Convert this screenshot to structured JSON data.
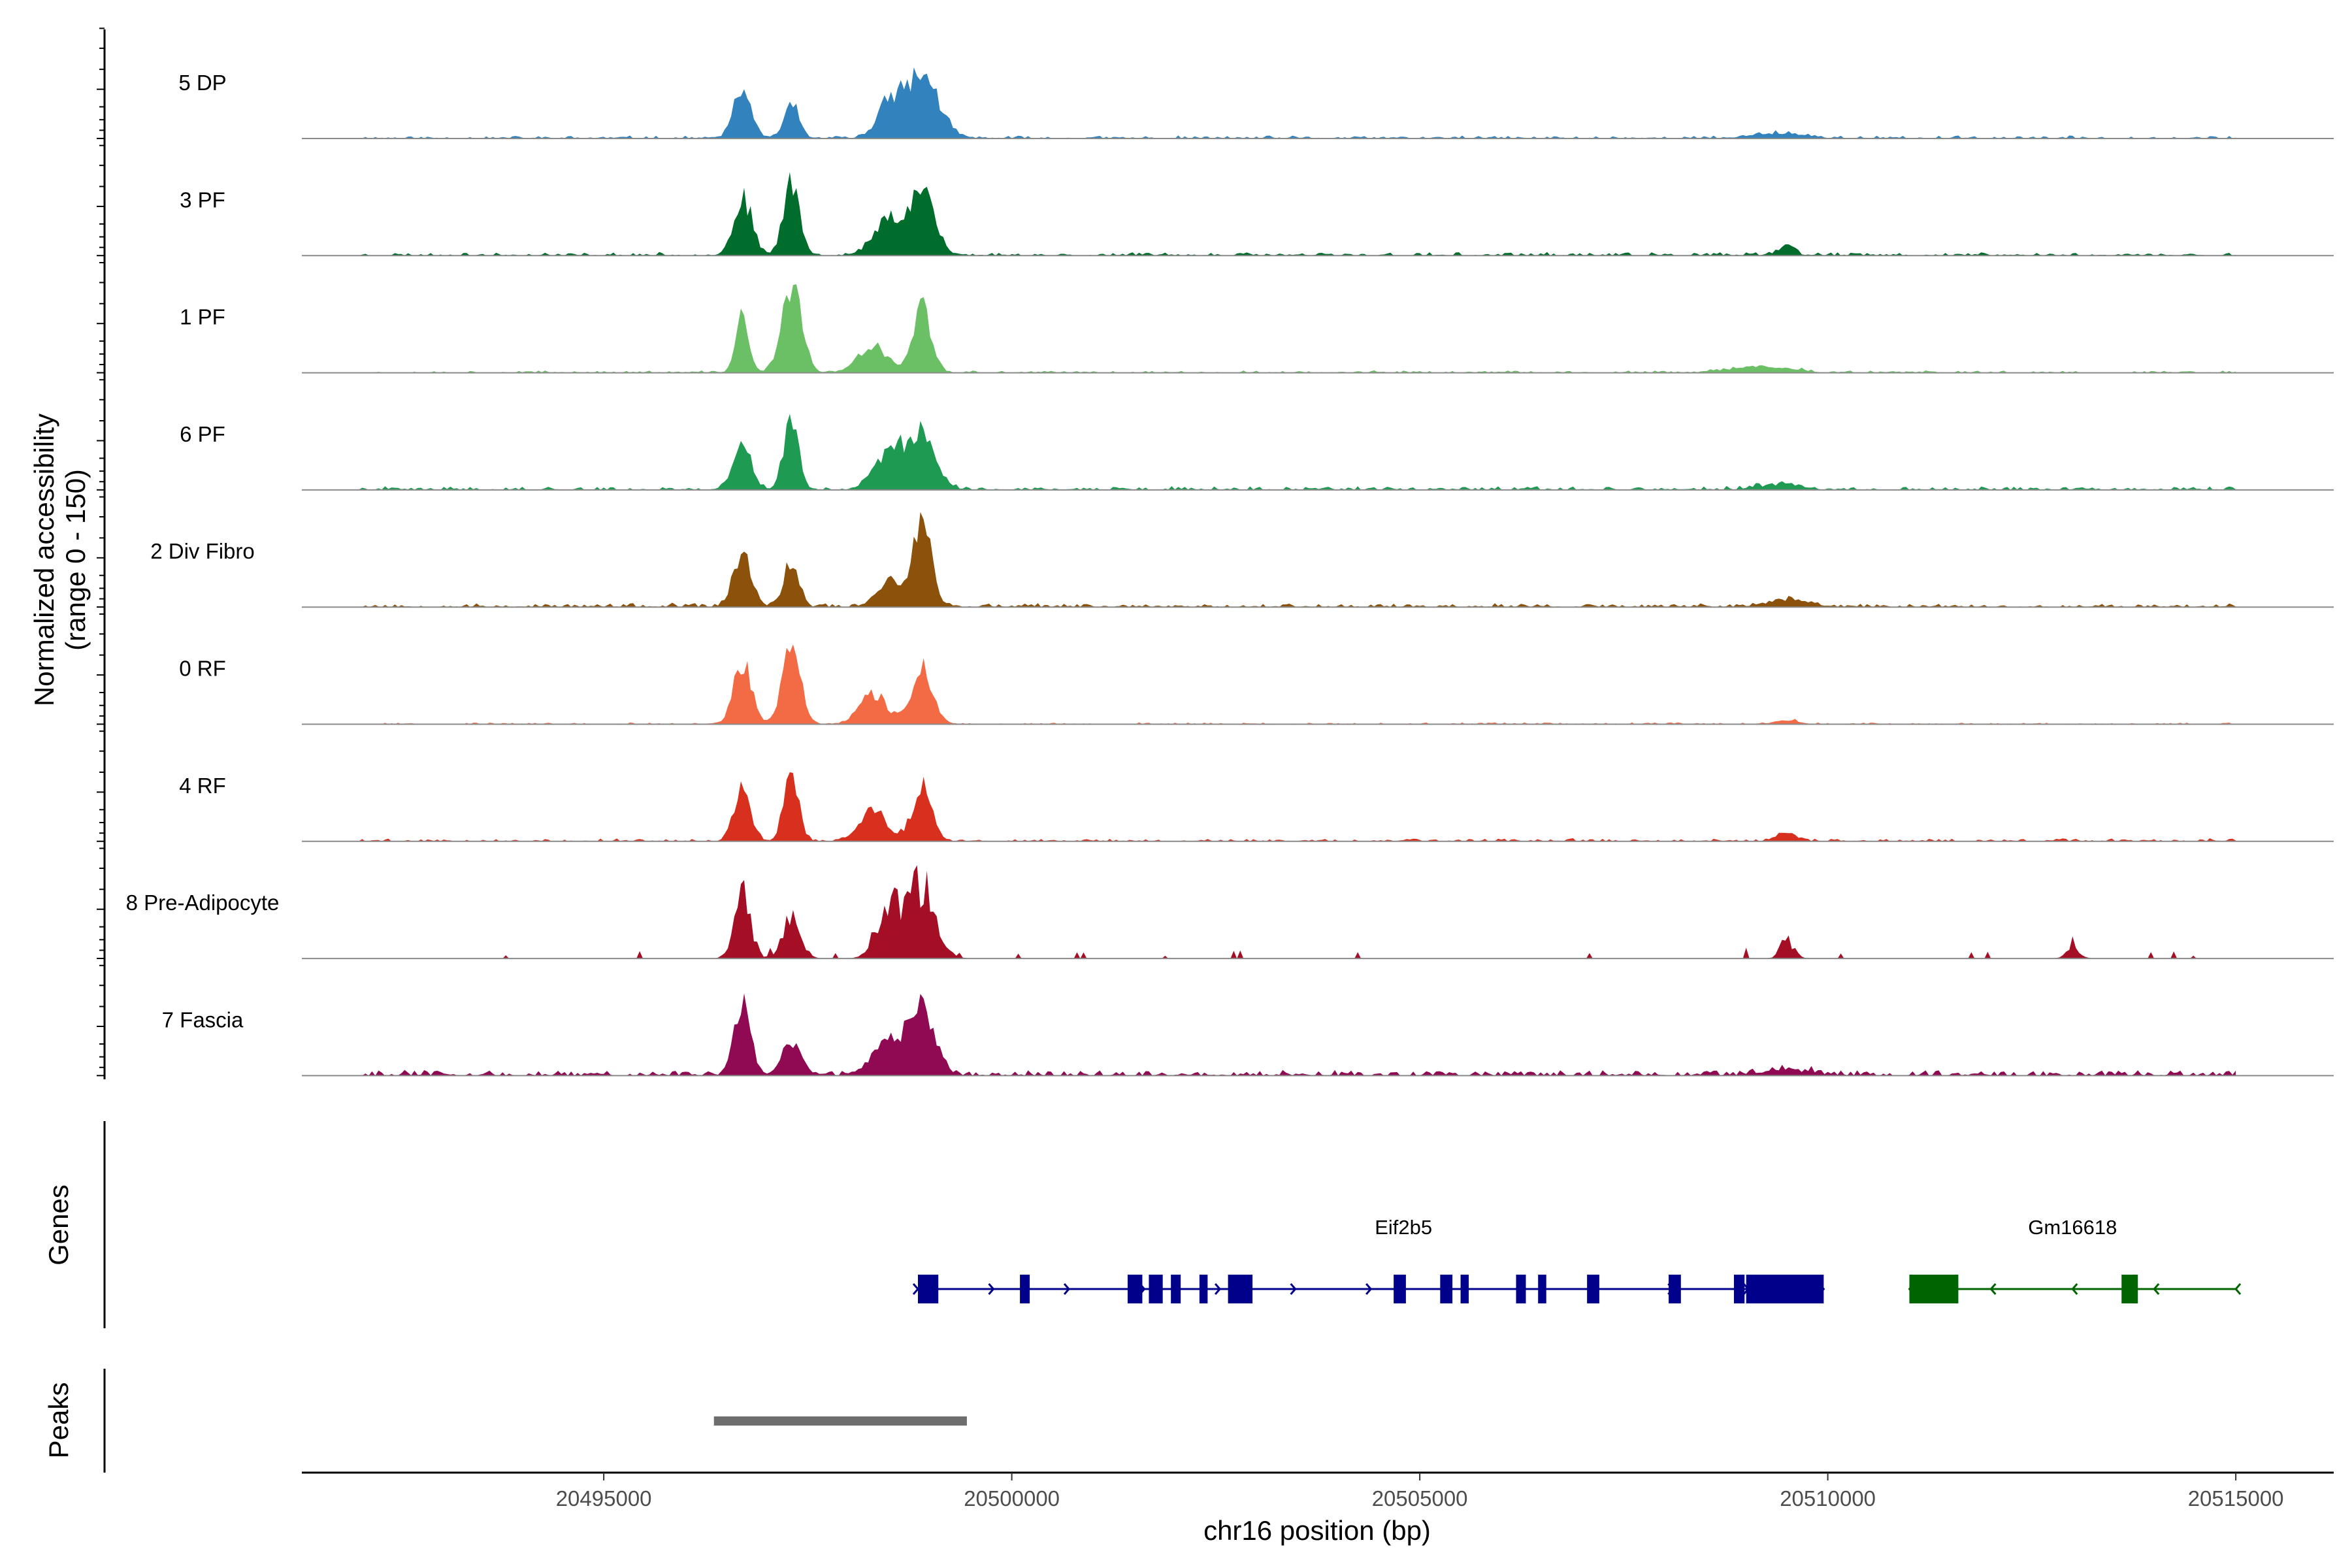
{
  "chart_data": {
    "type": "area",
    "title": "",
    "ylabel_line1": "Normalized accessibility",
    "ylabel_line2": "(range 0 - 150)",
    "ylim": [
      0,
      150
    ],
    "xlabel": "chr16 position (bp)",
    "xlim": [
      20491300,
      20516200
    ],
    "region": [
      20492000,
      20515000
    ],
    "xticks": [
      20495000,
      20500000,
      20505000,
      20510000,
      20515000
    ],
    "xtick_labels": [
      "20495000",
      "20500000",
      "20505000",
      "20510000",
      "20515000"
    ],
    "tracks": [
      {
        "name": "5 DP",
        "color": "#3182BD",
        "peaks": [
          [
            20496700,
            70,
            110
          ],
          [
            20497300,
            55,
            85
          ],
          [
            20498500,
            50,
            150
          ],
          [
            20498900,
            95,
            200
          ],
          [
            20509400,
            8,
            300
          ]
        ],
        "background": 2.5,
        "sparse": false,
        "seed": 11
      },
      {
        "name": "3 PF",
        "color": "#006D2C",
        "peaks": [
          [
            20496700,
            88,
            110
          ],
          [
            20497300,
            110,
            100
          ],
          [
            20498500,
            55,
            180
          ],
          [
            20498900,
            95,
            150
          ],
          [
            20509500,
            16,
            90
          ]
        ],
        "background": 3,
        "sparse": false,
        "seed": 23
      },
      {
        "name": "1 PF",
        "color": "#6BBF65",
        "peaks": [
          [
            20496700,
            88,
            80
          ],
          [
            20497300,
            135,
            120
          ],
          [
            20498300,
            38,
            180
          ],
          [
            20498900,
            100,
            110
          ],
          [
            20509000,
            8,
            250
          ],
          [
            20509500,
            6,
            200
          ]
        ],
        "background": 2,
        "sparse": false,
        "seed": 37
      },
      {
        "name": "6 PF",
        "color": "#1F9A52",
        "peaks": [
          [
            20496700,
            70,
            110
          ],
          [
            20497300,
            105,
            90
          ],
          [
            20498500,
            55,
            180
          ],
          [
            20498900,
            85,
            170
          ],
          [
            20509400,
            8,
            250
          ]
        ],
        "background": 3,
        "sparse": false,
        "seed": 41
      },
      {
        "name": "2 Div Fibro",
        "color": "#8C510A",
        "peaks": [
          [
            20496700,
            80,
            110
          ],
          [
            20497300,
            70,
            90
          ],
          [
            20498500,
            40,
            150
          ],
          [
            20498900,
            130,
            110
          ],
          [
            20509500,
            10,
            250
          ]
        ],
        "background": 3.5,
        "sparse": false,
        "seed": 53
      },
      {
        "name": "0 RF",
        "color": "#F26B45",
        "peaks": [
          [
            20496700,
            90,
            110
          ],
          [
            20497300,
            120,
            110
          ],
          [
            20498300,
            45,
            170
          ],
          [
            20498900,
            85,
            130
          ],
          [
            20509500,
            6,
            150
          ]
        ],
        "background": 1.5,
        "sparse": false,
        "seed": 67
      },
      {
        "name": "4 RF",
        "color": "#D7301F",
        "peaks": [
          [
            20496700,
            80,
            100
          ],
          [
            20497300,
            100,
            90
          ],
          [
            20498300,
            45,
            170
          ],
          [
            20498900,
            80,
            120
          ],
          [
            20509500,
            12,
            120
          ]
        ],
        "background": 2.5,
        "sparse": false,
        "seed": 79
      },
      {
        "name": "8 Pre-Adipocyte",
        "color": "#A50F25",
        "peaks": [
          [
            20496700,
            100,
            100
          ],
          [
            20497300,
            65,
            110
          ],
          [
            20498500,
            80,
            150
          ],
          [
            20498900,
            110,
            170
          ],
          [
            20509500,
            30,
            80
          ],
          [
            20513000,
            20,
            80
          ]
        ],
        "background": 7,
        "sparse": true,
        "seed": 97
      },
      {
        "name": "7 Fascia",
        "color": "#8F0A52",
        "peaks": [
          [
            20496700,
            110,
            100
          ],
          [
            20497300,
            45,
            120
          ],
          [
            20498500,
            50,
            200
          ],
          [
            20498900,
            100,
            150
          ],
          [
            20509500,
            8,
            300
          ]
        ],
        "background": 5,
        "sparse": false,
        "seed": 113
      }
    ],
    "genes_track_title": "Genes",
    "genes": [
      {
        "name": "Eif2b5",
        "strand": "+",
        "color": "#00008B",
        "start": 20498850,
        "end": 20509950,
        "exons": [
          [
            20498850,
            20499100
          ],
          [
            20500100,
            20500220
          ],
          [
            20501420,
            20501600
          ],
          [
            20501680,
            20501850
          ],
          [
            20501950,
            20502070
          ],
          [
            20502300,
            20502400
          ],
          [
            20502650,
            20502950
          ],
          [
            20504680,
            20504830
          ],
          [
            20505250,
            20505400
          ],
          [
            20505500,
            20505600
          ],
          [
            20506180,
            20506300
          ],
          [
            20506450,
            20506550
          ],
          [
            20507050,
            20507200
          ],
          [
            20508050,
            20508200
          ],
          [
            20508850,
            20508980
          ],
          [
            20509000,
            20509950
          ]
        ]
      },
      {
        "name": "Gm16618",
        "strand": "-",
        "color": "#006400",
        "start": 20511000,
        "end": 20515000,
        "exons": [
          [
            20511000,
            20511600
          ],
          [
            20513600,
            20513800
          ]
        ]
      }
    ],
    "peaks_track_title": "Peaks",
    "called_peaks": [
      [
        20496350,
        20499450
      ]
    ],
    "called_peak_color": "#6E6E6E"
  }
}
